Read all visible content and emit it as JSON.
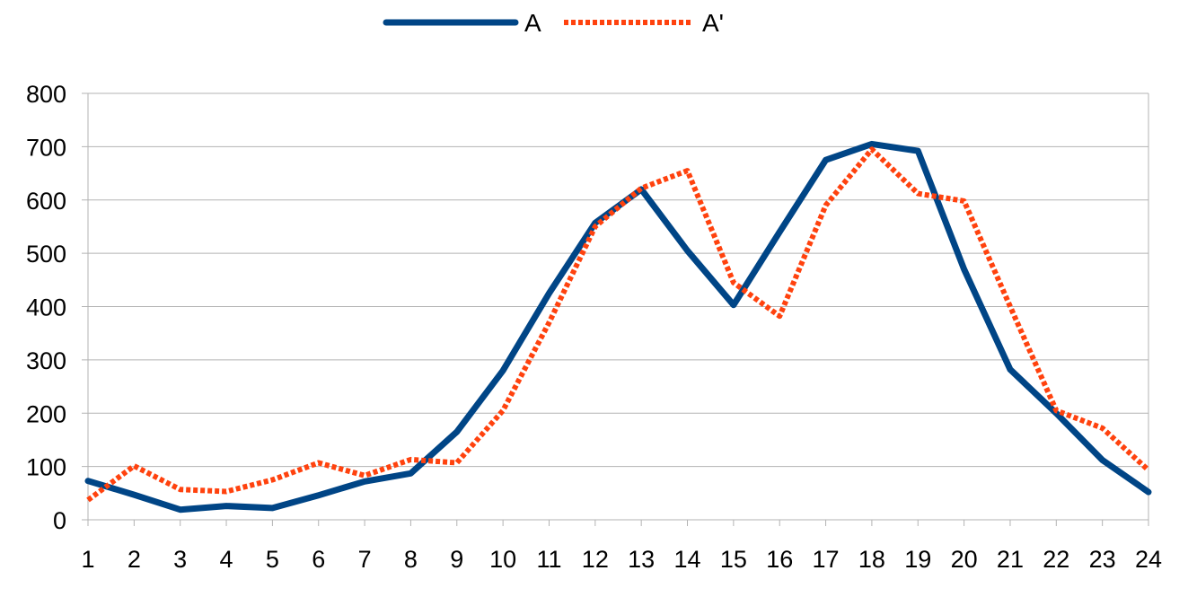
{
  "chart_data": {
    "type": "line",
    "title": "",
    "xlabel": "",
    "ylabel": "",
    "categories": [
      "1",
      "2",
      "3",
      "4",
      "5",
      "6",
      "7",
      "8",
      "9",
      "10",
      "11",
      "12",
      "13",
      "14",
      "15",
      "16",
      "17",
      "18",
      "19",
      "20",
      "21",
      "22",
      "23",
      "24"
    ],
    "ylim": [
      0,
      800
    ],
    "yticks": [
      "0",
      "100",
      "200",
      "300",
      "400",
      "500",
      "600",
      "700",
      "800"
    ],
    "grid": true,
    "legend_position": "top",
    "series": [
      {
        "name": "A",
        "color": "#004586",
        "line_style": "solid",
        "values": [
          73,
          47,
          19,
          26,
          22,
          46,
          72,
          87,
          165,
          280,
          425,
          557,
          620,
          505,
          403,
          540,
          675,
          705,
          692,
          470,
          282,
          200,
          112,
          52
        ]
      },
      {
        "name": "A'",
        "color": "#ff420e",
        "line_style": "dotted",
        "values": [
          37,
          101,
          57,
          53,
          75,
          107,
          83,
          113,
          107,
          205,
          370,
          550,
          622,
          655,
          445,
          382,
          590,
          695,
          612,
          598,
          400,
          205,
          172,
          93
        ]
      }
    ]
  }
}
